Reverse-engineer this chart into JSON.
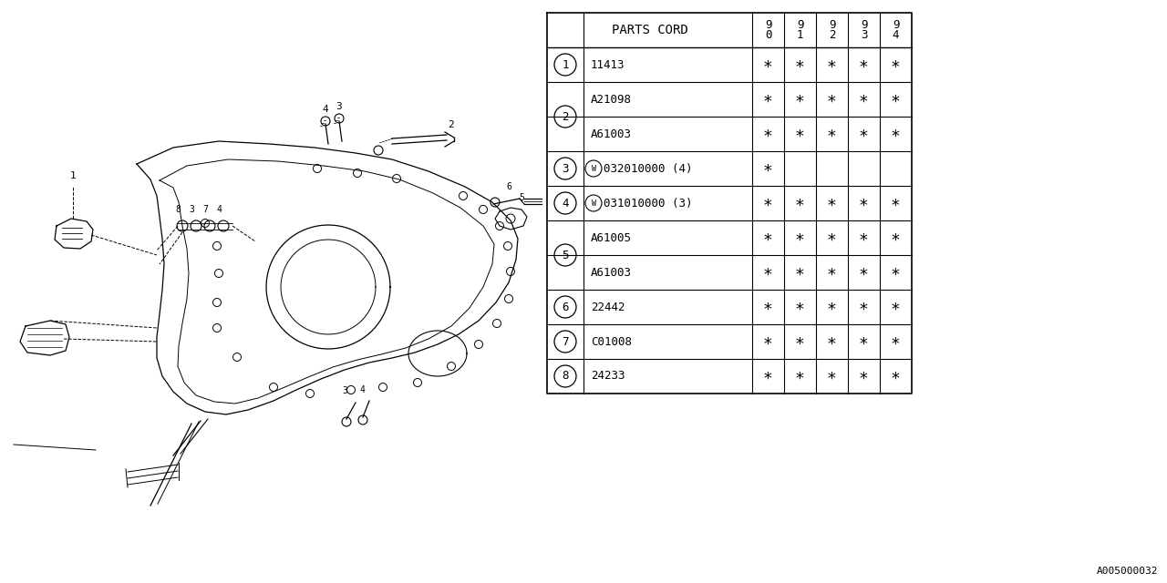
{
  "bg_color": "#ffffff",
  "line_color": "#000000",
  "title_code": "A005000032",
  "table": {
    "header_col": "PARTS CORD",
    "year_cols": [
      "9\n0",
      "9\n1",
      "9\n2",
      "9\n3",
      "9\n4"
    ],
    "rows": [
      {
        "num": "1",
        "code": "11413",
        "marks": [
          true,
          true,
          true,
          true,
          true
        ],
        "extra": ""
      },
      {
        "num": "2",
        "code": "A21098",
        "marks": [
          true,
          true,
          true,
          true,
          true
        ],
        "extra": ""
      },
      {
        "num": "2",
        "code": "A61003",
        "marks": [
          true,
          true,
          true,
          true,
          true
        ],
        "extra": ""
      },
      {
        "num": "3",
        "code": "032010000 (4)",
        "marks": [
          true,
          false,
          false,
          false,
          false
        ],
        "extra": "W"
      },
      {
        "num": "4",
        "code": "031010000 (3)",
        "marks": [
          true,
          true,
          true,
          true,
          true
        ],
        "extra": "W"
      },
      {
        "num": "5",
        "code": "A61005",
        "marks": [
          true,
          true,
          true,
          true,
          true
        ],
        "extra": ""
      },
      {
        "num": "5",
        "code": "A61003",
        "marks": [
          true,
          true,
          true,
          true,
          true
        ],
        "extra": ""
      },
      {
        "num": "6",
        "code": "22442",
        "marks": [
          true,
          true,
          true,
          true,
          true
        ],
        "extra": ""
      },
      {
        "num": "7",
        "code": "C01008",
        "marks": [
          true,
          true,
          true,
          true,
          true
        ],
        "extra": ""
      },
      {
        "num": "8",
        "code": "24233",
        "marks": [
          true,
          true,
          true,
          true,
          true
        ],
        "extra": ""
      }
    ],
    "grouped_rows": {
      "1": [
        0
      ],
      "2": [
        1,
        2
      ],
      "3": [
        3
      ],
      "4": [
        4
      ],
      "5": [
        5,
        6
      ],
      "6": [
        7
      ],
      "7": [
        8
      ],
      "8": [
        9
      ]
    }
  }
}
